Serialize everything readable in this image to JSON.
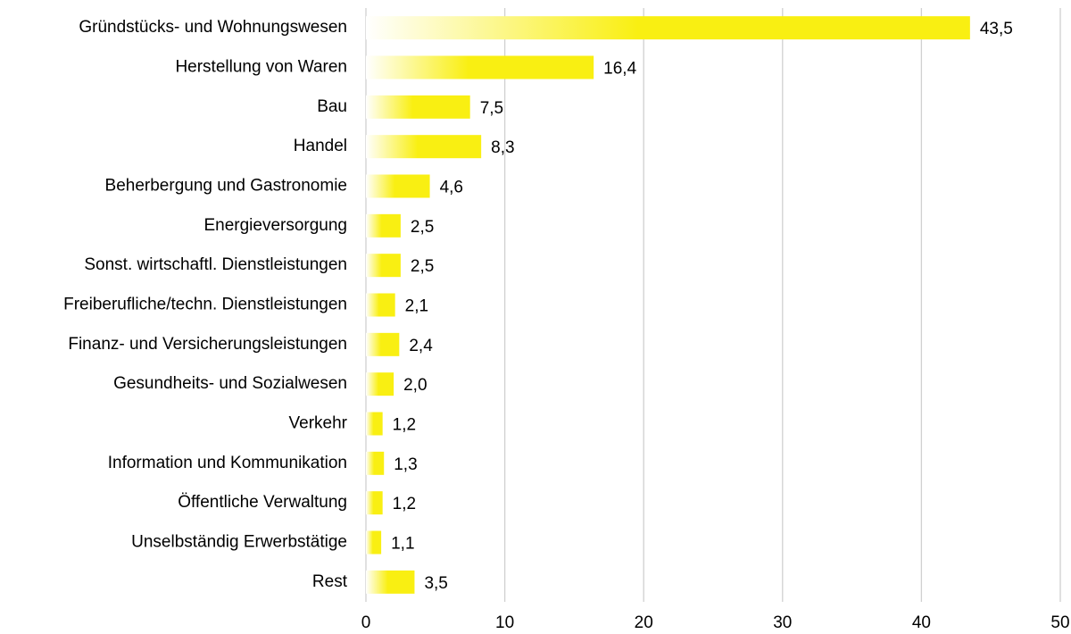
{
  "chart_data": {
    "type": "hbar",
    "categories": [
      "Gründstücks- und Wohnungswesen",
      "Herstellung von Waren",
      "Bau",
      "Handel",
      "Beherbergung und Gastronomie",
      "Energieversorgung",
      "Sonst. wirtschaftl. Dienstleistungen",
      "Freiberufliche/techn. Dienstleistungen",
      "Finanz- und Versicherungsleistungen",
      "Gesundheits- und Sozialwesen",
      "Verkehr",
      "Information und Kommunikation",
      "Öffentliche Verwaltung",
      "Unselbständig Erwerbstätige",
      "Rest"
    ],
    "values": [
      43.5,
      16.4,
      7.5,
      8.3,
      4.6,
      2.5,
      2.5,
      2.1,
      2.4,
      2.0,
      1.2,
      1.3,
      1.2,
      1.1,
      3.5
    ],
    "value_labels": [
      "43,5",
      "16,4",
      "7,5",
      "8,3",
      "4,6",
      "2,5",
      "2,5",
      "2,1",
      "2,4",
      "2,0",
      "1,2",
      "1,3",
      "1,2",
      "1,1",
      "3,5"
    ],
    "color": "#f9ef12",
    "xlim": [
      0,
      50
    ],
    "xticks": [
      0,
      10,
      20,
      30,
      40,
      50
    ],
    "grid": true
  }
}
